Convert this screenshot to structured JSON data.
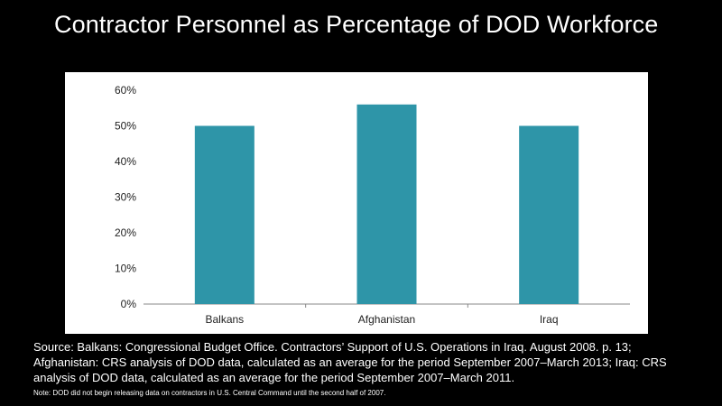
{
  "slide": {
    "title": "Contractor Personnel as Percentage of DOD Workforce",
    "source": "Source: Balkans: Congressional Budget Office. Contractors’ Support of U.S. Operations in Iraq. August 2008. p. 13; Afghanistan: CRS analysis of DOD data, calculated as an average for the period September 2007–March 2013; Iraq: CRS analysis of DOD data, calculated as an average for the period September 2007–March 2011.",
    "note": "Note: DOD did not begin releasing data on contractors in U.S. Central Command until the second half of 2007."
  },
  "colors": {
    "background": "#000000",
    "panel": "#ffffff",
    "bar": "#2e95a8",
    "axis": "#888888",
    "text": "#ffffff"
  },
  "chart_data": {
    "type": "bar",
    "categories": [
      "Balkans",
      "Afghanistan",
      "Iraq"
    ],
    "values": [
      50,
      56,
      50
    ],
    "ylim": [
      0,
      60
    ],
    "yticks": [
      0,
      10,
      20,
      30,
      40,
      50,
      60
    ],
    "ytick_labels": [
      "0%",
      "10%",
      "20%",
      "30%",
      "40%",
      "50%",
      "60%"
    ],
    "grid": false,
    "legend": "none",
    "title": "",
    "xlabel": "",
    "ylabel": ""
  }
}
